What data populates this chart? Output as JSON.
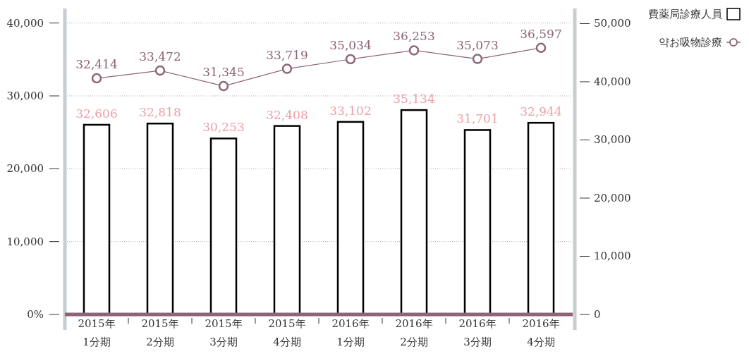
{
  "chart_data": {
    "type": "bar",
    "categories": [
      "2015年\n1分期",
      "2015年\n2分期",
      "2015年\n3分期",
      "2015年\n4分期",
      "2016年\n1分期",
      "2016年\n2分期",
      "2016年\n3分期",
      "2016年\n4分期"
    ],
    "series": [
      {
        "name": "費薬局診療人員",
        "axis": "y2",
        "color": "#ffffff",
        "values": [
          32606,
          32818,
          30253,
          32408,
          33102,
          35134,
          31701,
          32944
        ],
        "value_labels": [
          "32,606",
          "32,818",
          "30,253",
          "32,408",
          "33,102",
          "35,134",
          "31,701",
          "32,944"
        ]
      },
      {
        "name": "약お吸物診療",
        "type": "line",
        "color": "#8e6479",
        "values": [
          32414,
          33472,
          31345,
          33719,
          35034,
          36253,
          35073,
          36597
        ],
        "value_labels": [
          "32,414",
          "33,472",
          "31,345",
          "33,719",
          "35,034",
          "36,253",
          "35,073",
          "36,597"
        ]
      }
    ],
    "ylim": [
      0,
      42000
    ],
    "yticks": [
      {
        "value": 0,
        "label": "0%"
      },
      {
        "value": 10000,
        "label": "10,000"
      },
      {
        "value": 20000,
        "label": "20,000"
      },
      {
        "value": 30000,
        "label": "30,000"
      },
      {
        "value": 40000,
        "label": "40,000"
      }
    ],
    "y2lim": [
      0,
      52600
    ],
    "y2ticks": [
      0,
      {
        "value": 10000,
        "label": "10,000"
      },
      {
        "value": 20000,
        "label": "20,000"
      },
      {
        "value": 30000,
        "label": "30,000"
      },
      {
        "value": 40000,
        "label": "40,000"
      },
      {
        "value": 50000,
        "label": "50,000"
      }
    ],
    "grid": "y",
    "legend": "top right",
    "marker": "circle"
  }
}
